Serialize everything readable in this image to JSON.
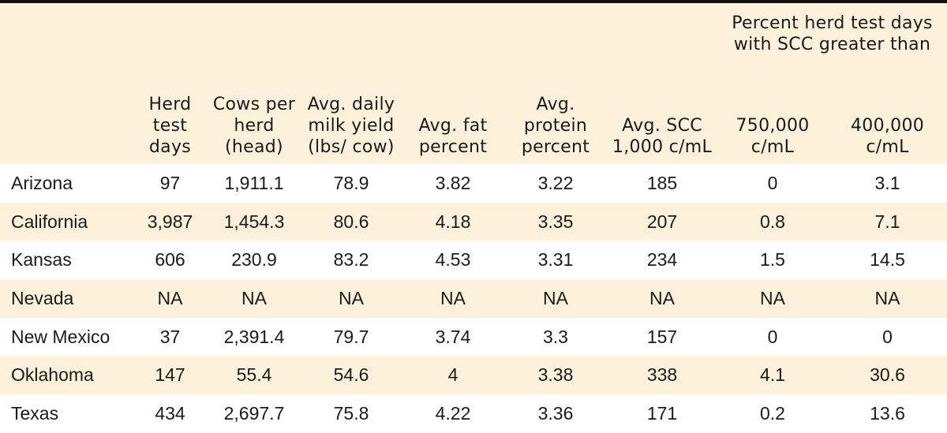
{
  "header": {
    "herd_test_days": "Herd test days",
    "cows_per_herd": "Cows per herd (head)",
    "avg_daily_milk": "Avg. daily milk yield (lbs/ cow)",
    "avg_fat": "Avg. fat percent",
    "avg_protein": "Avg. protein percent",
    "avg_scc": "Avg. SCC 1,000 c/mL",
    "group_label": "Percent herd test days with SCC greater than",
    "scc_750": "750,000 c/mL",
    "scc_400": "400,000 c/mL"
  },
  "rows": [
    {
      "state": "Arizona",
      "herd_test_days": "97",
      "cows_per_herd": "1,911.1",
      "milk_yield": "78.9",
      "fat": "3.82",
      "protein": "3.22",
      "scc": "185",
      "scc_750": "0",
      "scc_400": "3.1"
    },
    {
      "state": "California",
      "herd_test_days": "3,987",
      "cows_per_herd": "1,454.3",
      "milk_yield": "80.6",
      "fat": "4.18",
      "protein": "3.35",
      "scc": "207",
      "scc_750": "0.8",
      "scc_400": "7.1"
    },
    {
      "state": "Kansas",
      "herd_test_days": "606",
      "cows_per_herd": "230.9",
      "milk_yield": "83.2",
      "fat": "4.53",
      "protein": "3.31",
      "scc": "234",
      "scc_750": "1.5",
      "scc_400": "14.5"
    },
    {
      "state": "Nevada",
      "herd_test_days": "NA",
      "cows_per_herd": "NA",
      "milk_yield": "NA",
      "fat": "NA",
      "protein": "NA",
      "scc": "NA",
      "scc_750": "NA",
      "scc_400": "NA"
    },
    {
      "state": "New Mexico",
      "herd_test_days": "37",
      "cows_per_herd": "2,391.4",
      "milk_yield": "79.7",
      "fat": "3.74",
      "protein": "3.3",
      "scc": "157",
      "scc_750": "0",
      "scc_400": "0"
    },
    {
      "state": "Oklahoma",
      "herd_test_days": "147",
      "cows_per_herd": "55.4",
      "milk_yield": "54.6",
      "fat": "4",
      "protein": "3.38",
      "scc": "338",
      "scc_750": "4.1",
      "scc_400": "30.6"
    },
    {
      "state": "Texas",
      "herd_test_days": "434",
      "cows_per_herd": "2,697.7",
      "milk_yield": "75.8",
      "fat": "4.22",
      "protein": "3.36",
      "scc": "171",
      "scc_750": "0.2",
      "scc_400": "13.6"
    }
  ],
  "colors": {
    "header_bg": "#fdf1dc",
    "stripe_bg": "#fdf1dc",
    "rule": "#111111"
  }
}
